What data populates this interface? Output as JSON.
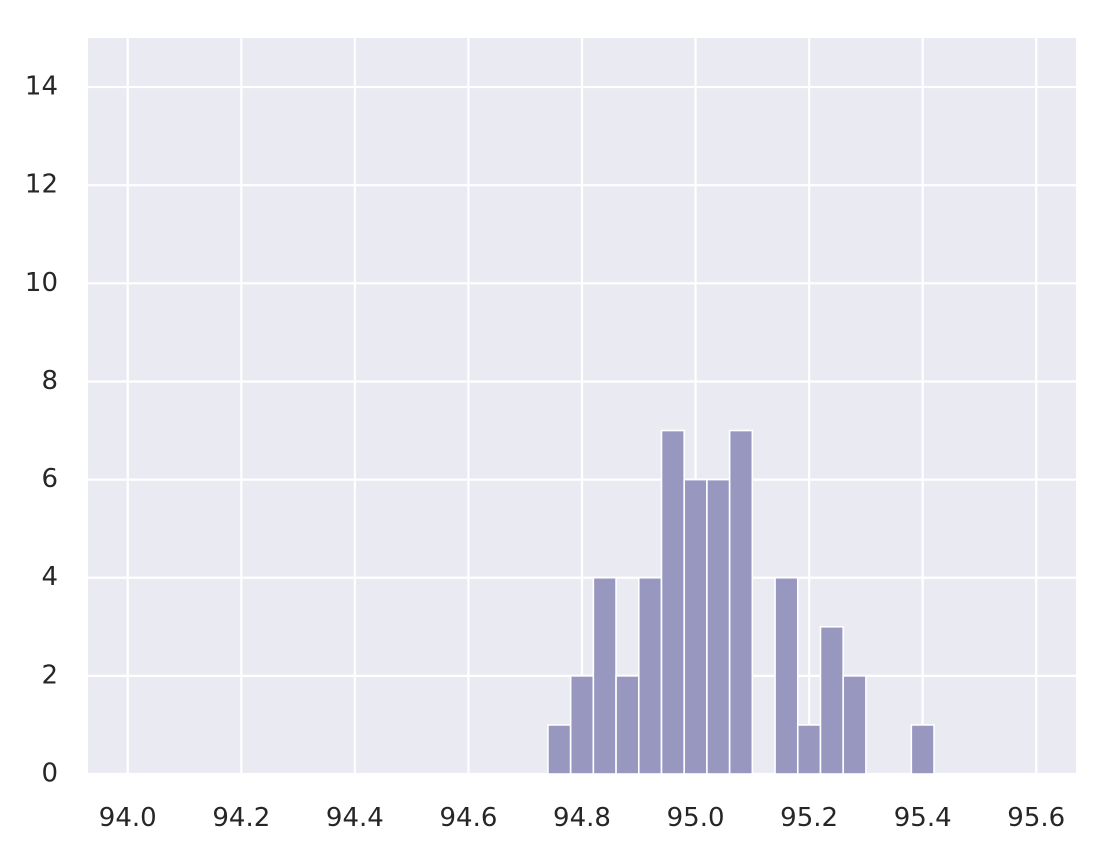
{
  "chart_data": {
    "type": "bar",
    "title": "",
    "xlabel": "",
    "ylabel": "",
    "grid": true,
    "xlim": [
      93.93,
      95.67
    ],
    "ylim": [
      0,
      15
    ],
    "x_ticks": [
      94.0,
      94.2,
      94.4,
      94.6,
      94.8,
      95.0,
      95.2,
      95.4,
      95.6
    ],
    "x_tick_labels": [
      "94.0",
      "94.2",
      "94.4",
      "94.6",
      "94.8",
      "95.0",
      "95.2",
      "95.4",
      "95.6"
    ],
    "y_ticks": [
      0,
      2,
      4,
      6,
      8,
      10,
      12,
      14
    ],
    "y_tick_labels": [
      "0",
      "2",
      "4",
      "6",
      "8",
      "10",
      "12",
      "14"
    ],
    "bin_width": 0.04,
    "bins": [
      {
        "x": 94.76,
        "count": 1
      },
      {
        "x": 94.8,
        "count": 2
      },
      {
        "x": 94.84,
        "count": 4
      },
      {
        "x": 94.88,
        "count": 2
      },
      {
        "x": 94.92,
        "count": 4
      },
      {
        "x": 94.96,
        "count": 7
      },
      {
        "x": 95.0,
        "count": 6
      },
      {
        "x": 95.04,
        "count": 6
      },
      {
        "x": 95.08,
        "count": 7
      },
      {
        "x": 95.16,
        "count": 4
      },
      {
        "x": 95.2,
        "count": 1
      },
      {
        "x": 95.24,
        "count": 3
      },
      {
        "x": 95.28,
        "count": 2
      },
      {
        "x": 95.4,
        "count": 1
      }
    ],
    "colors": {
      "bar": "#9797c0",
      "bar_edge": "#ffffff",
      "plot_background": "#eaeaf2",
      "grid": "#ffffff",
      "text": "#262626"
    }
  }
}
